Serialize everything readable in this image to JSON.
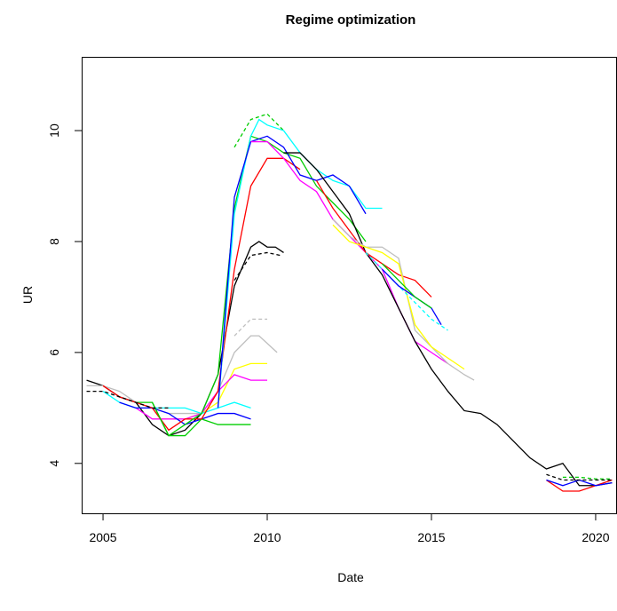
{
  "chart_data": {
    "type": "line",
    "title": "Regime optimization",
    "x_label": "Date",
    "y_label": "UR",
    "xlim": [
      2004.35,
      2020.65
    ],
    "ylim": [
      3.1,
      11.33
    ],
    "xticks": [
      2005,
      2010,
      2015,
      2020
    ],
    "yticks": [
      4,
      6,
      8,
      10
    ],
    "series": [
      {
        "color": "#000000",
        "dashed": false,
        "x": [
          2004.5,
          2005,
          2005.5,
          2006,
          2006.5,
          2007,
          2007.5,
          2008,
          2008.5,
          2009,
          2009.5,
          2009.75,
          2010,
          2010.25,
          2010.5
        ],
        "values": [
          5.5,
          5.4,
          5.2,
          5.1,
          4.7,
          4.5,
          4.6,
          4.9,
          5.6,
          7.2,
          7.9,
          8.0,
          7.9,
          7.9,
          7.8
        ]
      },
      {
        "color": "#000000",
        "dashed": true,
        "x": [
          2009,
          2009.5,
          2010,
          2010.4
        ],
        "values": [
          7.3,
          7.75,
          7.8,
          7.75
        ]
      },
      {
        "color": "#bebebe",
        "dashed": false,
        "x": [
          2004.5,
          2005,
          2005.5,
          2006,
          2006.5,
          2007,
          2007.5,
          2008,
          2008.5,
          2009,
          2009.5,
          2009.75,
          2010.3
        ],
        "values": [
          5.4,
          5.4,
          5.3,
          5.1,
          5.0,
          4.9,
          4.9,
          4.9,
          5.3,
          6.0,
          6.3,
          6.3,
          6.0
        ]
      },
      {
        "color": "#bebebe",
        "dashed": true,
        "x": [
          2009,
          2009.5,
          2010
        ],
        "values": [
          6.3,
          6.6,
          6.6
        ]
      },
      {
        "color": "#ffff00",
        "dashed": false,
        "x": [
          2006.5,
          2007,
          2007.5,
          2008,
          2008.5,
          2009,
          2009.5,
          2010
        ],
        "values": [
          4.8,
          4.8,
          4.8,
          4.9,
          5.1,
          5.7,
          5.8,
          5.8
        ]
      },
      {
        "color": "#ff00ff",
        "dashed": false,
        "x": [
          2006,
          2006.5,
          2007,
          2007.5,
          2008,
          2008.5,
          2009,
          2009.5,
          2010
        ],
        "values": [
          5.0,
          4.8,
          4.8,
          4.8,
          4.9,
          5.3,
          5.6,
          5.5,
          5.5
        ]
      },
      {
        "color": "#00ffff",
        "dashed": false,
        "x": [
          2005,
          2005.5,
          2006,
          2006.5,
          2007,
          2007.5,
          2008,
          2008.5,
          2009,
          2009.5
        ],
        "values": [
          5.3,
          5.1,
          5.0,
          5.0,
          5.0,
          5.0,
          4.9,
          5.0,
          5.1,
          5.0
        ]
      },
      {
        "color": "#0000ff",
        "dashed": false,
        "x": [
          2005.5,
          2006,
          2006.5,
          2007,
          2007.5,
          2008,
          2008.5,
          2009,
          2009.5
        ],
        "values": [
          5.1,
          5.0,
          5.0,
          4.9,
          4.7,
          4.8,
          4.9,
          4.9,
          4.8
        ]
      },
      {
        "color": "#00cd00",
        "dashed": false,
        "x": [
          2006,
          2006.5,
          2007,
          2007.5,
          2008,
          2008.5,
          2009,
          2009.5
        ],
        "values": [
          5.1,
          5.1,
          4.5,
          4.5,
          4.8,
          4.7,
          4.7,
          4.7
        ]
      },
      {
        "color": "#ff0000",
        "dashed": false,
        "x": [
          2005,
          2005.5,
          2006,
          2006.5,
          2007,
          2007.5,
          2008,
          2008.5,
          2009,
          2009.5,
          2010,
          2010.5,
          2011
        ],
        "values": [
          5.4,
          5.2,
          5.1,
          5.0,
          4.6,
          4.8,
          4.8,
          5.3,
          7.5,
          9.0,
          9.5,
          9.5,
          9.3
        ]
      },
      {
        "color": "#00cd00",
        "dashed": false,
        "x": [
          2006.5,
          2007,
          2007.5,
          2008,
          2008.5,
          2009,
          2009.5,
          2010,
          2010.5,
          2011,
          2011.5,
          2012,
          2012.5,
          2013
        ],
        "values": [
          5.1,
          4.5,
          4.7,
          4.9,
          5.6,
          8.6,
          9.9,
          9.8,
          9.6,
          9.5,
          9.0,
          8.7,
          8.4,
          8.0
        ]
      },
      {
        "color": "#00cd00",
        "dashed": true,
        "x": [
          2009,
          2009.5,
          2010,
          2010.5
        ],
        "values": [
          9.7,
          10.2,
          10.3,
          10.0
        ]
      },
      {
        "color": "#00ffff",
        "dashed": false,
        "x": [
          2008.5,
          2009,
          2009.5,
          2009.75,
          2010,
          2010.5,
          2011,
          2011.5,
          2012,
          2012.5,
          2013,
          2013.5
        ],
        "values": [
          5.0,
          8.5,
          9.9,
          10.2,
          10.1,
          10.0,
          9.6,
          9.3,
          9.1,
          9.0,
          8.6,
          8.6
        ]
      },
      {
        "color": "#0000ff",
        "dashed": false,
        "x": [
          2008.5,
          2009,
          2009.5,
          2010,
          2010.5,
          2011,
          2011.5,
          2012,
          2012.5,
          2013
        ],
        "values": [
          5.0,
          8.8,
          9.8,
          9.9,
          9.7,
          9.2,
          9.1,
          9.2,
          9.0,
          8.5
        ]
      },
      {
        "color": "#ff00ff",
        "dashed": false,
        "x": [
          2009.5,
          2010,
          2010.5,
          2011,
          2011.5,
          2012,
          2012.5,
          2013,
          2013.5,
          2014,
          2014.5,
          2015,
          2015.5
        ],
        "values": [
          9.8,
          9.8,
          9.5,
          9.1,
          8.9,
          8.4,
          8.1,
          7.8,
          7.5,
          6.8,
          6.2,
          6.0,
          5.8
        ]
      },
      {
        "color": "#000000",
        "dashed": false,
        "x": [
          2010.5,
          2011,
          2011.5,
          2012,
          2012.5,
          2013,
          2013.5,
          2014,
          2014.5,
          2015,
          2015.5,
          2016,
          2016.5,
          2017,
          2017.5,
          2018,
          2018.5,
          2019,
          2019.5,
          2020,
          2020.5
        ],
        "values": [
          9.6,
          9.6,
          9.3,
          8.9,
          8.5,
          7.8,
          7.4,
          6.8,
          6.2,
          5.7,
          5.3,
          4.95,
          4.9,
          4.7,
          4.4,
          4.1,
          3.9,
          4.0,
          3.6,
          3.6,
          3.65
        ]
      },
      {
        "color": "#ff0000",
        "dashed": false,
        "x": [
          2011.5,
          2012,
          2012.5,
          2013,
          2013.5,
          2014,
          2014.5,
          2015
        ],
        "values": [
          9.1,
          8.6,
          8.2,
          7.8,
          7.6,
          7.4,
          7.3,
          7.0
        ]
      },
      {
        "color": "#bebebe",
        "dashed": false,
        "x": [
          2012,
          2012.5,
          2013,
          2013.5,
          2014,
          2014.5,
          2015,
          2015.5,
          2016,
          2016.3
        ],
        "values": [
          8.4,
          8.1,
          7.9,
          7.9,
          7.7,
          6.4,
          6.1,
          5.8,
          5.6,
          5.5
        ]
      },
      {
        "color": "#ffff00",
        "dashed": false,
        "x": [
          2012,
          2012.5,
          2013,
          2013.5,
          2014,
          2014.5,
          2015,
          2015.5,
          2016
        ],
        "values": [
          8.3,
          8.0,
          7.9,
          7.8,
          7.6,
          6.5,
          6.1,
          5.9,
          5.7
        ]
      },
      {
        "color": "#00ffff",
        "dashed": true,
        "x": [
          2013,
          2013.5,
          2014,
          2014.5,
          2015,
          2015.5
        ],
        "values": [
          7.8,
          7.5,
          7.2,
          6.9,
          6.6,
          6.4
        ]
      },
      {
        "color": "#0000ff",
        "dashed": false,
        "x": [
          2013.5,
          2014,
          2014.5,
          2015,
          2015.3
        ],
        "values": [
          7.5,
          7.2,
          7.0,
          6.8,
          6.5
        ]
      },
      {
        "color": "#00cd00",
        "dashed": false,
        "x": [
          2013.5,
          2014,
          2014.5,
          2015
        ],
        "values": [
          7.6,
          7.3,
          7.0,
          6.8
        ]
      },
      {
        "color": "#ff0000",
        "dashed": false,
        "x": [
          2018.5,
          2019,
          2019.5,
          2020,
          2020.5
        ],
        "values": [
          3.7,
          3.5,
          3.5,
          3.6,
          3.7
        ]
      },
      {
        "color": "#0000ff",
        "dashed": false,
        "x": [
          2018.5,
          2019,
          2019.5,
          2020,
          2020.5
        ],
        "values": [
          3.7,
          3.6,
          3.7,
          3.6,
          3.65
        ]
      },
      {
        "color": "#00cd00",
        "dashed": true,
        "x": [
          2019,
          2019.5,
          2020,
          2020.5
        ],
        "values": [
          3.75,
          3.75,
          3.72,
          3.72
        ]
      },
      {
        "color": "#000000",
        "dashed": true,
        "x": [
          2018.5,
          2019,
          2019.5,
          2020,
          2020.5
        ],
        "values": [
          3.8,
          3.7,
          3.7,
          3.7,
          3.7
        ]
      },
      {
        "color": "#000000",
        "dashed": true,
        "x": [
          2004.5,
          2005,
          2005.5,
          2006,
          2006.5,
          2007
        ],
        "values": [
          5.3,
          5.3,
          5.2,
          5.1,
          5.0,
          5.0
        ]
      }
    ]
  }
}
